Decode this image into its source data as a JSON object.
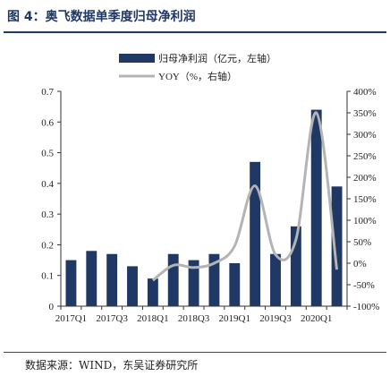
{
  "figure": {
    "title": "图 4：奥飞数据单季度归母净利润",
    "source": "数据来源：WIND，东吴证券研究所"
  },
  "chart_data": {
    "type": "bar",
    "categories": [
      "2017Q1",
      "2017Q2",
      "2017Q3",
      "2017Q4",
      "2018Q1",
      "2018Q2",
      "2018Q3",
      "2018Q4",
      "2019Q1",
      "2019Q2",
      "2019Q3",
      "2019Q4",
      "2020Q1",
      "2020Q2"
    ],
    "tick_labels": [
      "2017Q1",
      "2017Q3",
      "2018Q1",
      "2018Q3",
      "2019Q1",
      "2019Q3",
      "2020Q1"
    ],
    "series": [
      {
        "name": "归母净利润（亿元，左轴）",
        "type": "bar",
        "axis": "left",
        "color": "#1f3864",
        "values": [
          0.15,
          0.18,
          0.17,
          0.13,
          0.09,
          0.17,
          0.15,
          0.17,
          0.14,
          0.47,
          0.17,
          0.26,
          0.64,
          0.39
        ]
      },
      {
        "name": "YOY（%，右轴）",
        "type": "line",
        "axis": "right",
        "color": "#b4b4b4",
        "values": [
          null,
          null,
          null,
          null,
          -40,
          -5,
          -10,
          0,
          40,
          180,
          20,
          55,
          350,
          -15
        ]
      }
    ],
    "ylim_left": [
      0,
      0.7
    ],
    "yticks_left": [
      "0",
      "0.1",
      "0.2",
      "0.3",
      "0.4",
      "0.5",
      "0.6",
      "0.7"
    ],
    "ylim_right": [
      -100,
      400
    ],
    "yticks_right": [
      "-100%",
      "-50%",
      "0%",
      "50%",
      "100%",
      "150%",
      "200%",
      "250%",
      "300%",
      "350%",
      "400%"
    ],
    "legend_position": "top",
    "grid": false
  }
}
